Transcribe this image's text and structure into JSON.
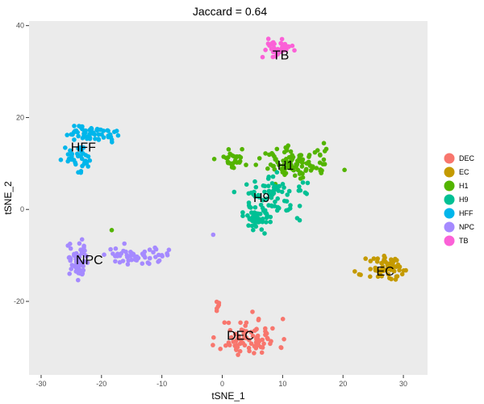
{
  "chart_data": {
    "type": "scatter",
    "title": "Jaccard = 0.64",
    "xlabel": "tSNE_1",
    "ylabel": "tSNE_2",
    "xlim": [
      -32,
      34
    ],
    "ylim": [
      -36,
      41
    ],
    "xticks": [
      -30,
      -20,
      -10,
      0,
      10,
      20,
      30
    ],
    "yticks": [
      -20,
      0,
      20,
      40
    ],
    "grid": false,
    "panel_background": "#ebebeb",
    "legend_position": "right",
    "series": [
      {
        "name": "DEC",
        "color": "#F8766D",
        "clusters": [
          {
            "center": [
              4.5,
              -28
            ],
            "spread": [
              4.0,
              3.5
            ],
            "count": 85,
            "seed": 11
          },
          {
            "center": [
              -0.5,
              -21.5
            ],
            "spread": [
              0.6,
              1.2
            ],
            "count": 6,
            "seed": 12
          }
        ],
        "label": {
          "text": "DEC",
          "x": 3,
          "y": -27.5
        }
      },
      {
        "name": "EC",
        "color": "#C49A00",
        "clusters": [
          {
            "center": [
              27.5,
              -13
            ],
            "spread": [
              3.0,
              2.2
            ],
            "count": 60,
            "seed": 21
          }
        ],
        "label": {
          "text": "EC",
          "x": 27,
          "y": -13.5
        }
      },
      {
        "name": "H1",
        "color": "#53B400",
        "clusters": [
          {
            "center": [
              12,
              10
            ],
            "spread": [
              5.0,
              3.0
            ],
            "count": 100,
            "seed": 31
          },
          {
            "center": [
              2,
              11
            ],
            "spread": [
              2.0,
              1.8
            ],
            "count": 25,
            "seed": 32
          },
          {
            "center": [
              -18.3,
              -4.5
            ],
            "spread": [
              0.1,
              0.1
            ],
            "count": 1,
            "seed": 33
          }
        ],
        "label": {
          "text": "H1",
          "x": 10.5,
          "y": 9.5
        }
      },
      {
        "name": "H9",
        "color": "#00C094",
        "clusters": [
          {
            "center": [
              9,
              3
            ],
            "spread": [
              5.0,
              3.5
            ],
            "count": 80,
            "seed": 41
          },
          {
            "center": [
              5.5,
              -2
            ],
            "spread": [
              2.2,
              2.0
            ],
            "count": 40,
            "seed": 42
          }
        ],
        "label": {
          "text": "H9",
          "x": 6.5,
          "y": 2.5
        }
      },
      {
        "name": "HFF",
        "color": "#00B6EB",
        "clusters": [
          {
            "center": [
              -22,
              16.5
            ],
            "spread": [
              4.0,
              1.5
            ],
            "count": 60,
            "seed": 51
          },
          {
            "center": [
              -24,
              11
            ],
            "spread": [
              1.8,
              2.5
            ],
            "count": 40,
            "seed": 52
          }
        ],
        "label": {
          "text": "HFF",
          "x": -23,
          "y": 13.5
        }
      },
      {
        "name": "NPC",
        "color": "#A58AFF",
        "clusters": [
          {
            "center": [
              -24,
              -11
            ],
            "spread": [
              1.5,
              4.0
            ],
            "count": 55,
            "seed": 61
          },
          {
            "center": [
              -14,
              -10
            ],
            "spread": [
              3.8,
              1.4
            ],
            "count": 55,
            "seed": 62
          },
          {
            "center": [
              -1.5,
              -5.5
            ],
            "spread": [
              0.1,
              0.1
            ],
            "count": 1,
            "seed": 63
          }
        ],
        "label": {
          "text": "NPC",
          "x": -22,
          "y": -11
        }
      },
      {
        "name": "TB",
        "color": "#FB61D7",
        "clusters": [
          {
            "center": [
              9.5,
              35
            ],
            "spread": [
              2.2,
              1.5
            ],
            "count": 40,
            "seed": 71
          }
        ],
        "label": {
          "text": "TB",
          "x": 9.7,
          "y": 33.5
        }
      }
    ]
  }
}
